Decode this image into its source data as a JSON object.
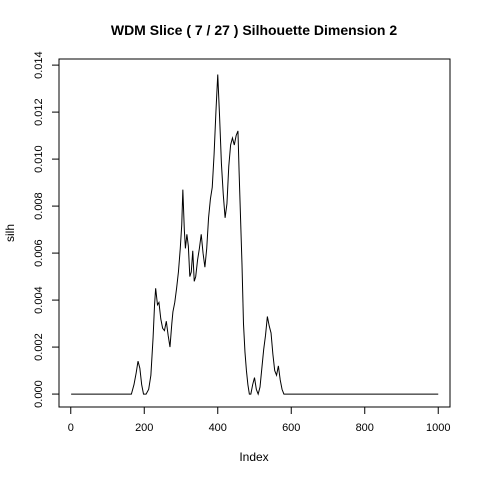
{
  "chart_data": {
    "type": "line",
    "title": "WDM Slice ( 7 / 27 )  Silhouette Dimension 2",
    "xlabel": "Index",
    "ylabel": "silh",
    "xlim": [
      -32,
      1032
    ],
    "ylim": [
      -0.00055,
      0.01426
    ],
    "x_ticks": [
      0,
      200,
      400,
      600,
      800,
      1000
    ],
    "x_tick_labels": [
      "0",
      "200",
      "400",
      "600",
      "800",
      "1000"
    ],
    "y_ticks": [
      0,
      0.002,
      0.004,
      0.006,
      0.008,
      0.01,
      0.012,
      0.014
    ],
    "y_tick_labels": [
      "0.000",
      "0.002",
      "0.004",
      "0.006",
      "0.008",
      "0.010",
      "0.012",
      "0.014"
    ],
    "grid": false,
    "legend": "none",
    "line_color": "#000000",
    "series": [
      {
        "x": [
          1,
          120,
          165,
          172,
          178,
          183,
          188,
          193,
          198,
          205,
          212,
          218,
          224,
          228,
          231,
          236,
          240,
          245,
          250,
          255,
          260,
          265,
          270,
          275,
          278,
          283,
          288,
          293,
          298,
          302,
          305,
          309,
          312,
          316,
          320,
          324,
          328,
          332,
          336,
          340,
          345,
          350,
          355,
          360,
          365,
          370,
          375,
          380,
          385,
          390,
          395,
          400,
          405,
          410,
          415,
          420,
          425,
          430,
          435,
          440,
          445,
          450,
          455,
          458,
          462,
          466,
          470,
          474,
          478,
          482,
          486,
          490,
          495,
          500,
          505,
          510,
          515,
          520,
          525,
          530,
          535,
          540,
          545,
          550,
          555,
          560,
          565,
          570,
          575,
          580,
          590,
          700,
          800,
          1000
        ],
        "y": [
          0,
          0,
          0,
          0.0004,
          0.0009,
          0.0014,
          0.0011,
          0.0004,
          0,
          0,
          0.0002,
          0.0008,
          0.0024,
          0.0038,
          0.0045,
          0.0038,
          0.0039,
          0.0032,
          0.0028,
          0.0027,
          0.0031,
          0.0025,
          0.002,
          0.003,
          0.0035,
          0.0039,
          0.0045,
          0.0052,
          0.0062,
          0.0072,
          0.0087,
          0.007,
          0.0062,
          0.0068,
          0.0063,
          0.005,
          0.0052,
          0.0061,
          0.0048,
          0.005,
          0.0057,
          0.0062,
          0.0068,
          0.006,
          0.0054,
          0.0062,
          0.0075,
          0.0083,
          0.0088,
          0.0102,
          0.012,
          0.0136,
          0.0118,
          0.0098,
          0.0085,
          0.0075,
          0.0081,
          0.0097,
          0.0106,
          0.0109,
          0.0106,
          0.011,
          0.0112,
          0.0095,
          0.0075,
          0.0055,
          0.003,
          0.0018,
          0.001,
          0.0004,
          0,
          0,
          0.0004,
          0.0007,
          0.0002,
          0,
          0.0003,
          0.0011,
          0.0019,
          0.0025,
          0.0033,
          0.0029,
          0.0026,
          0.0017,
          0.001,
          0.0008,
          0.0012,
          0.0006,
          0.0002,
          0,
          0,
          0,
          0,
          0
        ]
      }
    ]
  }
}
